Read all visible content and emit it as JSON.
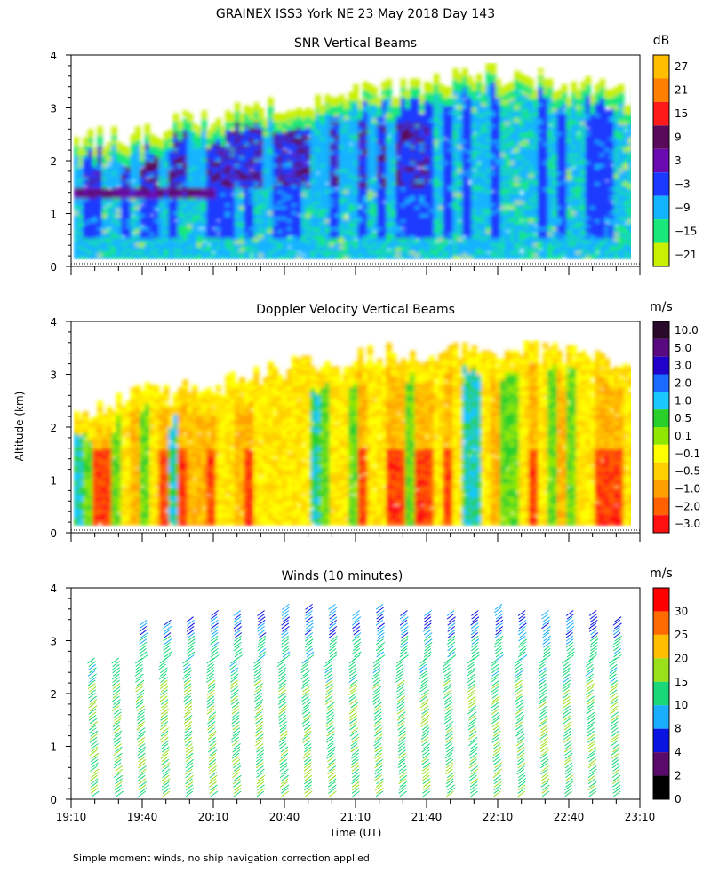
{
  "title": "GRAINEX ISS3 York NE  23 May 2018 Day 143",
  "ylabel": "Altitude (km)",
  "xlabel": "Time (UT)",
  "footnote": "Simple moment winds, no ship navigation correction applied",
  "chart_data": [
    {
      "type": "heatmap",
      "title": "SNR Vertical Beams",
      "ylim": [
        0,
        4
      ],
      "yticks": [
        "0",
        "1",
        "2",
        "3",
        "4"
      ],
      "x_range": [
        "19:10",
        "23:10"
      ],
      "grid": false,
      "colorbar": {
        "unit": "dB",
        "labels": [
          "27",
          "21",
          "15",
          "9",
          "3",
          "−3",
          "−9",
          "−15",
          "−21"
        ],
        "colors": [
          "#ffbf00",
          "#ff7f00",
          "#ff1a1a",
          "#5a0a5a",
          "#6a0ab0",
          "#1a3aff",
          "#12b4ff",
          "#18e87a",
          "#c8f000"
        ]
      },
      "description_values": {
        "echo_top_km_by_hour": {
          "19:10": 2.3,
          "20:10": 2.8,
          "21:10": 3.3,
          "22:10": 3.6,
          "23:10": 3.2
        },
        "dominant_low_level_db": -9,
        "strong_layer_km": [
          1.5,
          2.7
        ]
      }
    },
    {
      "type": "heatmap",
      "title": "Doppler Velocity Vertical Beams",
      "ylim": [
        0,
        4
      ],
      "yticks": [
        "0",
        "1",
        "2",
        "3",
        "4"
      ],
      "x_range": [
        "19:10",
        "23:10"
      ],
      "grid": false,
      "colorbar": {
        "unit": "m/s",
        "labels": [
          "10.0",
          "5.0",
          "3.0",
          "2.0",
          "1.0",
          "0.5",
          "0.1",
          "−0.1",
          "−0.5",
          "−1.0",
          "−2.0",
          "−3.0"
        ],
        "colors": [
          "#2a0a2a",
          "#5a0a80",
          "#2200cc",
          "#1a6aff",
          "#18c8ff",
          "#2ad02a",
          "#90e800",
          "#ffff00",
          "#ffd000",
          "#ffa000",
          "#ff6000",
          "#ff1010"
        ]
      },
      "description_values": {
        "echo_top_km_by_hour": {
          "19:10": 2.3,
          "20:10": 2.8,
          "21:10": 3.3,
          "22:10": 3.5,
          "23:10": 3.1
        }
      }
    },
    {
      "type": "scatter",
      "title": "Winds (10 minutes)",
      "ylim": [
        0,
        4
      ],
      "yticks": [
        "0",
        "1",
        "2",
        "3",
        "4"
      ],
      "xticks": [
        "19:10",
        "19:40",
        "20:10",
        "20:40",
        "21:10",
        "21:40",
        "22:10",
        "22:40",
        "23:10"
      ],
      "x_range": [
        "19:10",
        "23:10"
      ],
      "grid": false,
      "colorbar": {
        "unit": "m/s",
        "labels": [
          "30",
          "25",
          "20",
          "15",
          "10",
          "8",
          "4",
          "2",
          "0"
        ],
        "colors": [
          "#ff0000",
          "#ff6a00",
          "#ffbf00",
          "#9ae01a",
          "#18d878",
          "#1aaeff",
          "#0a14e0",
          "#5a0a6a",
          "#000000"
        ]
      },
      "profile_times": [
        "19:20",
        "19:30",
        "19:40",
        "19:50",
        "20:00",
        "20:10",
        "20:20",
        "20:30",
        "20:40",
        "20:50",
        "21:00",
        "21:10",
        "21:20",
        "21:30",
        "21:40",
        "21:50",
        "22:00",
        "22:10",
        "22:20",
        "22:30",
        "22:40",
        "22:50",
        "23:00"
      ],
      "profile_tops_km": [
        2.6,
        2.6,
        3.3,
        3.3,
        3.4,
        3.5,
        3.5,
        3.5,
        3.6,
        3.6,
        3.6,
        3.5,
        3.6,
        3.5,
        3.5,
        3.5,
        3.5,
        3.6,
        3.5,
        3.5,
        3.5,
        3.5,
        3.4
      ],
      "speed_by_layer_m_s": {
        "0-2.2 km": 12,
        "2.2-3.0 km": 10,
        "3.0-3.6 km": 6
      }
    }
  ]
}
